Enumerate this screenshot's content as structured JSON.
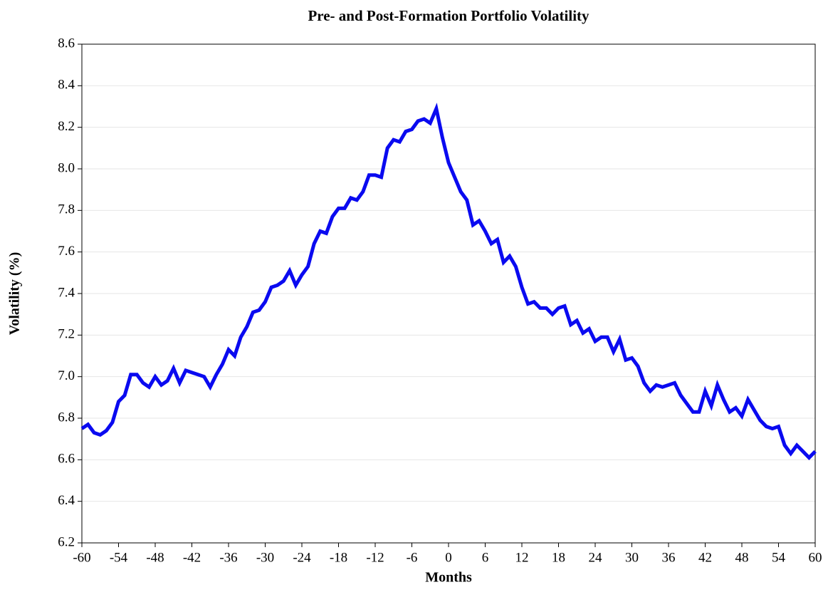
{
  "chart_data": {
    "type": "line",
    "title": "Pre- and Post-Formation Portfolio Volatility",
    "x_label": "Months",
    "y_label": "Volatility (%)",
    "x": [
      -60,
      -59,
      -58,
      -57,
      -56,
      -55,
      -54,
      -53,
      -52,
      -51,
      -50,
      -49,
      -48,
      -47,
      -46,
      -45,
      -44,
      -43,
      -42,
      -41,
      -40,
      -39,
      -38,
      -37,
      -36,
      -35,
      -34,
      -33,
      -32,
      -31,
      -30,
      -29,
      -28,
      -27,
      -26,
      -25,
      -24,
      -23,
      -22,
      -21,
      -20,
      -19,
      -18,
      -17,
      -16,
      -15,
      -14,
      -13,
      -12,
      -11,
      -10,
      -9,
      -8,
      -7,
      -6,
      -5,
      -4,
      -3,
      -2,
      -1,
      0,
      1,
      2,
      3,
      4,
      5,
      6,
      7,
      8,
      9,
      10,
      11,
      12,
      13,
      14,
      15,
      16,
      17,
      18,
      19,
      20,
      21,
      22,
      23,
      24,
      25,
      26,
      27,
      28,
      29,
      30,
      31,
      32,
      33,
      34,
      35,
      36,
      37,
      38,
      39,
      40,
      41,
      42,
      43,
      44,
      45,
      46,
      47,
      48,
      49,
      50,
      51,
      52,
      53,
      54,
      55,
      56,
      57,
      58,
      59,
      60
    ],
    "series": [
      {
        "name": "Volatility",
        "color": "#0a0af0",
        "values": [
          6.75,
          6.77,
          6.73,
          6.72,
          6.74,
          6.78,
          6.88,
          6.91,
          7.01,
          7.01,
          6.97,
          6.95,
          7.0,
          6.96,
          6.98,
          7.04,
          6.97,
          7.03,
          7.02,
          7.01,
          7.0,
          6.95,
          7.01,
          7.06,
          7.13,
          7.1,
          7.19,
          7.24,
          7.31,
          7.32,
          7.36,
          7.43,
          7.44,
          7.46,
          7.51,
          7.44,
          7.49,
          7.53,
          7.64,
          7.7,
          7.69,
          7.77,
          7.81,
          7.81,
          7.86,
          7.85,
          7.89,
          7.97,
          7.97,
          7.96,
          8.1,
          8.14,
          8.13,
          8.18,
          8.19,
          8.23,
          8.24,
          8.22,
          8.29,
          8.15,
          8.03,
          7.96,
          7.89,
          7.85,
          7.73,
          7.75,
          7.7,
          7.64,
          7.66,
          7.55,
          7.58,
          7.53,
          7.43,
          7.35,
          7.36,
          7.33,
          7.33,
          7.3,
          7.33,
          7.34,
          7.25,
          7.27,
          7.21,
          7.23,
          7.17,
          7.19,
          7.19,
          7.12,
          7.18,
          7.08,
          7.09,
          7.05,
          6.97,
          6.93,
          6.96,
          6.95,
          6.96,
          6.97,
          6.91,
          6.87,
          6.83,
          6.83,
          6.93,
          6.86,
          6.96,
          6.89,
          6.83,
          6.85,
          6.81,
          6.89,
          6.84,
          6.79,
          6.76,
          6.75,
          6.76,
          6.67,
          6.63,
          6.67,
          6.64,
          6.61,
          6.64
        ]
      }
    ],
    "xlim": [
      -60,
      60
    ],
    "xticks": [
      -60,
      -54,
      -48,
      -42,
      -36,
      -30,
      -24,
      -18,
      -12,
      -6,
      0,
      6,
      12,
      18,
      24,
      30,
      36,
      42,
      48,
      54,
      60
    ],
    "ylim": [
      6.2,
      8.6
    ],
    "yticks": [
      6.2,
      6.4,
      6.6,
      6.8,
      {
        "value": 7,
        "label": "7.0"
      },
      7.2,
      7.4,
      7.6,
      7.8,
      {
        "value": 8,
        "label": "8.0"
      },
      8.2,
      8.4,
      8.6
    ],
    "grid": true
  }
}
